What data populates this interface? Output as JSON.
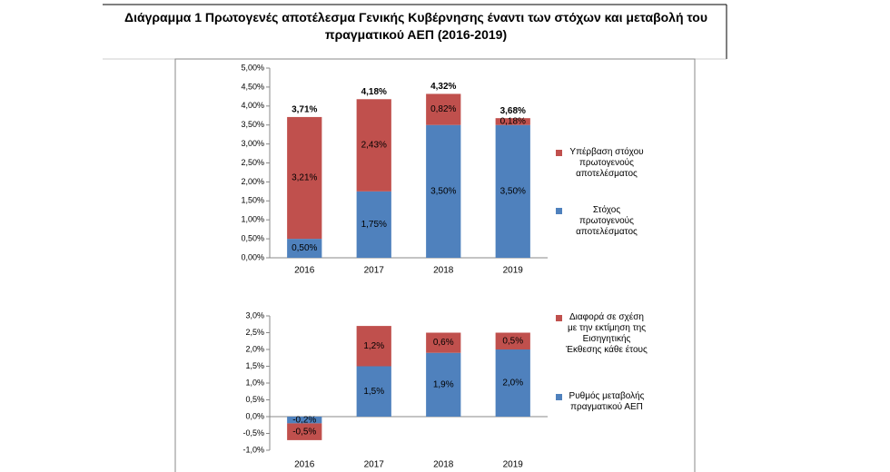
{
  "title": "Διάγραμμα 1 Πρωτογενές αποτέλεσμα Γενικής Κυβέρνησης έναντι των στόχων και μεταβολή του πραγματικού ΑΕΠ (2016-2019)",
  "chart_data": [
    {
      "type": "stacked-bar",
      "categories": [
        "2016",
        "2017",
        "2018",
        "2019"
      ],
      "series": [
        {
          "name": "Στόχος πρωτογενούς αποτελέσματος",
          "color": "#4f81bd",
          "values": [
            0.5,
            1.75,
            3.5,
            3.5
          ],
          "value_labels": [
            "0,50%",
            "1,75%",
            "3,50%",
            "3,50%"
          ]
        },
        {
          "name": "Υπέρβαση στόχου πρωτογενούς αποτελέσματος",
          "color": "#c0504d",
          "values": [
            3.21,
            2.43,
            0.82,
            0.18
          ],
          "value_labels": [
            "3,21%",
            "2,43%",
            "0,82%",
            "0,18%"
          ]
        }
      ],
      "totals": [
        3.71,
        4.18,
        4.32,
        3.68
      ],
      "total_labels": [
        "3,71%",
        "4,18%",
        "4,32%",
        "3,68%"
      ],
      "ylim": [
        0,
        5
      ],
      "yticks": [
        {
          "value": 0,
          "label": "0,00%"
        },
        {
          "value": 0.5,
          "label": "0,50%"
        },
        {
          "value": 1,
          "label": "1,00%"
        },
        {
          "value": 1.5,
          "label": "1,50%"
        },
        {
          "value": 2,
          "label": "2,00%"
        },
        {
          "value": 2.5,
          "label": "2,50%"
        },
        {
          "value": 3,
          "label": "3,00%"
        },
        {
          "value": 3.5,
          "label": "3,50%"
        },
        {
          "value": 4,
          "label": "4,00%"
        },
        {
          "value": 4.5,
          "label": "4,50%"
        },
        {
          "value": 5,
          "label": "5,00%"
        }
      ],
      "grid": false,
      "legend": "right"
    },
    {
      "type": "stacked-bar",
      "categories": [
        "2016",
        "2017",
        "2018",
        "2019"
      ],
      "series": [
        {
          "name": "Ρυθμός μεταβολής πραγματικού ΑΕΠ",
          "color": "#4f81bd",
          "values": [
            -0.2,
            1.5,
            1.9,
            2.0
          ],
          "value_labels": [
            "-0,2%",
            "1,5%",
            "1,9%",
            "2,0%"
          ]
        },
        {
          "name": "Διαφορά σε σχέση με την εκτίμηση της Εισηγητικής Έκθεσης κάθε έτους",
          "color": "#c0504d",
          "values": [
            -0.5,
            1.2,
            0.6,
            0.5
          ],
          "value_labels": [
            "-0,5%",
            "1,2%",
            "0,6%",
            "0,5%"
          ]
        }
      ],
      "ylim": [
        -1,
        3
      ],
      "yticks": [
        {
          "value": -1,
          "label": "-1,0%"
        },
        {
          "value": -0.5,
          "label": "-0,5%"
        },
        {
          "value": 0,
          "label": "0,0%"
        },
        {
          "value": 0.5,
          "label": "0,5%"
        },
        {
          "value": 1,
          "label": "1,0%"
        },
        {
          "value": 1.5,
          "label": "1,5%"
        },
        {
          "value": 2,
          "label": "2,0%"
        },
        {
          "value": 2.5,
          "label": "2,5%"
        },
        {
          "value": 3,
          "label": "3,0%"
        }
      ],
      "grid": false,
      "legend": "right"
    }
  ]
}
